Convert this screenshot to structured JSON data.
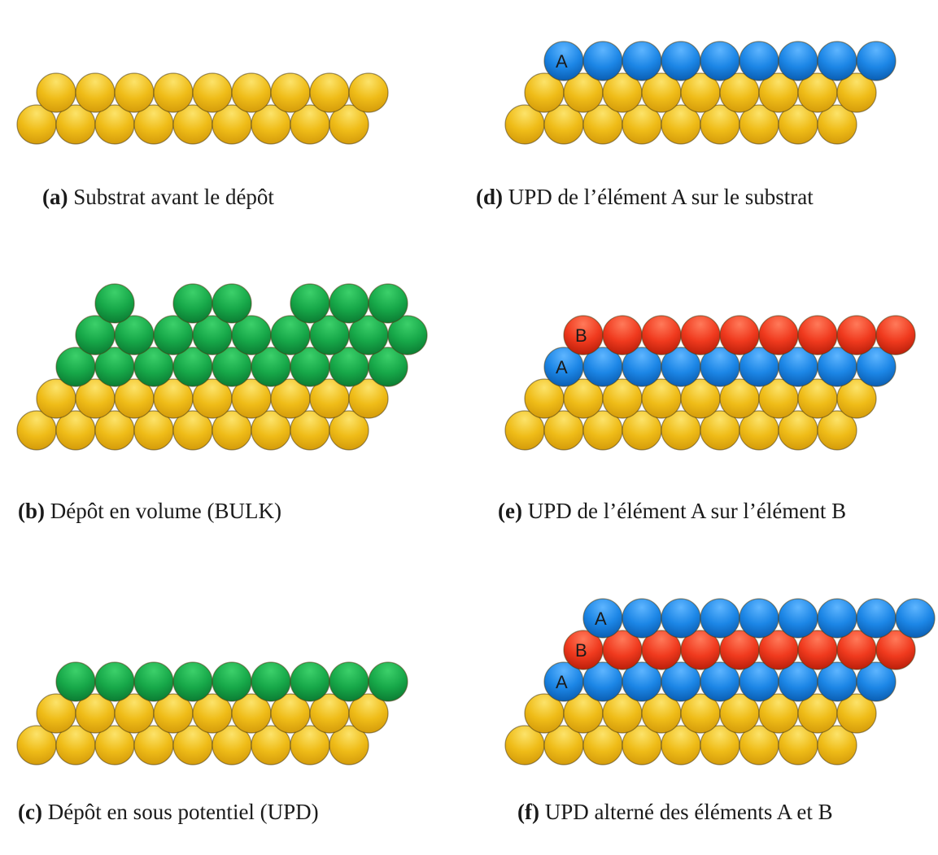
{
  "colors": {
    "substrate": "#EFBC18",
    "bulk": "#17A849",
    "element_a": "#1C86E6",
    "element_b": "#F03A1E"
  },
  "panels": [
    {
      "id": "a",
      "tag": "(a)",
      "caption": "Substrat avant le dépôt",
      "layers": [
        "substrate",
        "substrate"
      ],
      "labels": []
    },
    {
      "id": "b",
      "tag": "(b)",
      "caption": "Dépôt en volume (BULK)",
      "layers": [
        "substrate",
        "substrate",
        "bulk",
        "bulk",
        "bulk-partial"
      ],
      "labels": []
    },
    {
      "id": "c",
      "tag": "(c)",
      "caption": "Dépôt en sous potentiel (UPD)",
      "layers": [
        "substrate",
        "substrate",
        "bulk"
      ],
      "labels": []
    },
    {
      "id": "d",
      "tag": "(d)",
      "caption": "UPD de l’élément A sur le substrat",
      "layers": [
        "substrate",
        "substrate",
        "element_a"
      ],
      "labels": [
        "A"
      ]
    },
    {
      "id": "e",
      "tag": "(e)",
      "caption": "UPD de l’élément A sur l’élément B",
      "layers": [
        "substrate",
        "substrate",
        "element_a",
        "element_b"
      ],
      "labels": [
        "A",
        "B"
      ]
    },
    {
      "id": "f",
      "tag": "(f)",
      "caption": "UPD alterné des éléments A et B",
      "layers": [
        "substrate",
        "substrate",
        "element_a",
        "element_b",
        "element_a"
      ],
      "labels": [
        "A",
        "B",
        "A"
      ]
    }
  ]
}
